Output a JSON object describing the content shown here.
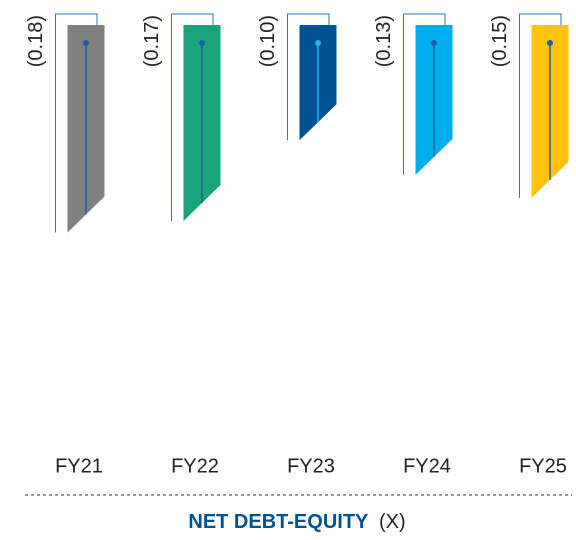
{
  "chart_data": {
    "type": "bar",
    "title": "NET DEBT-EQUITY",
    "title_unit": "(X)",
    "categories": [
      "FY21",
      "FY22",
      "FY23",
      "FY24",
      "FY25"
    ],
    "values": [
      -0.18,
      -0.17,
      -0.1,
      -0.13,
      -0.15
    ],
    "value_labels": [
      "(0.18)",
      "(0.17)",
      "(0.10)",
      "(0.13)",
      "(0.15)"
    ],
    "colors": [
      "#808080",
      "#1aa37a",
      "#005293",
      "#00aeef",
      "#ffc20e"
    ],
    "ylim": [
      -0.36,
      0
    ]
  }
}
